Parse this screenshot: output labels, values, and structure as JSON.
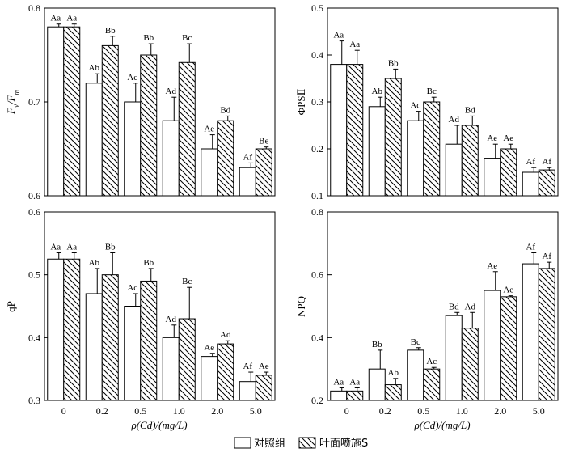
{
  "legend": {
    "series": [
      {
        "name": "对照组",
        "style": "plain"
      },
      {
        "name": "叶面喷施S",
        "style": "hatched"
      }
    ]
  },
  "colors": {
    "bar_fill": "#ffffff",
    "bar_edge": "#000000",
    "hatch": "#000000"
  },
  "chart_data": [
    {
      "type": "bar",
      "panel": "top-left",
      "ylabel_main": "F",
      "ylabel_sub1": "v",
      "ylabel_mid": "/F",
      "ylabel_sub2": "m",
      "ylabel": "Fv/Fm",
      "xlabel": "",
      "ylim": [
        0.6,
        0.8
      ],
      "yticks": [
        0.6,
        0.7,
        0.8
      ],
      "ytick_labels": [
        "0.6",
        "0.7",
        "0.8"
      ],
      "categories": [
        "0",
        "0.2",
        "0.5",
        "1.0",
        "2.0",
        "5.0"
      ],
      "show_xticklabels": false,
      "series": [
        {
          "values": [
            0.78,
            0.72,
            0.7,
            0.68,
            0.65,
            0.63
          ],
          "errors": [
            0.003,
            0.01,
            0.02,
            0.025,
            0.015,
            0.005
          ],
          "labels": [
            "Aa",
            "Ab",
            "Ac",
            "Ad",
            "Ae",
            "Af"
          ]
        },
        {
          "values": [
            0.78,
            0.76,
            0.75,
            0.742,
            0.68,
            0.65
          ],
          "errors": [
            0.003,
            0.01,
            0.012,
            0.02,
            0.005,
            0.002
          ],
          "labels": [
            "Aa",
            "Bb",
            "Bb",
            "Bc",
            "Bd",
            "Be"
          ]
        }
      ]
    },
    {
      "type": "bar",
      "panel": "top-right",
      "ylabel": "ΦPSⅡ",
      "xlabel": "",
      "ylim": [
        0.1,
        0.5
      ],
      "yticks": [
        0.1,
        0.2,
        0.3,
        0.4,
        0.5
      ],
      "ytick_labels": [
        "0.1",
        "0.2",
        "0.3",
        "0.4",
        "0.5"
      ],
      "categories": [
        "0",
        "0.2",
        "0.5",
        "1.0",
        "2.0",
        "5.0"
      ],
      "show_xticklabels": false,
      "series": [
        {
          "values": [
            0.38,
            0.29,
            0.26,
            0.21,
            0.18,
            0.15
          ],
          "errors": [
            0.05,
            0.02,
            0.02,
            0.04,
            0.03,
            0.01
          ],
          "labels": [
            "Aa",
            "Ab",
            "Ac",
            "Ad",
            "Ae",
            "Af"
          ]
        },
        {
          "values": [
            0.38,
            0.35,
            0.3,
            0.25,
            0.2,
            0.155
          ],
          "errors": [
            0.03,
            0.02,
            0.01,
            0.02,
            0.01,
            0.005
          ],
          "labels": [
            "Aa",
            "Bb",
            "Bc",
            "Bd",
            "Ae",
            "Af"
          ]
        }
      ]
    },
    {
      "type": "bar",
      "panel": "bottom-left",
      "ylabel": "qP",
      "xlabel": "ρ(Cd)/(mg/L)",
      "ylim": [
        0.3,
        0.6
      ],
      "yticks": [
        0.3,
        0.4,
        0.5,
        0.6
      ],
      "ytick_labels": [
        "0.3",
        "0.4",
        "0.5",
        "0.6"
      ],
      "categories": [
        "0",
        "0.2",
        "0.5",
        "1.0",
        "2.0",
        "5.0"
      ],
      "show_xticklabels": true,
      "series": [
        {
          "values": [
            0.525,
            0.47,
            0.45,
            0.4,
            0.37,
            0.33
          ],
          "errors": [
            0.01,
            0.04,
            0.02,
            0.02,
            0.005,
            0.015
          ],
          "labels": [
            "Aa",
            "Ab",
            "Ac",
            "Ad",
            "Ae",
            "Af"
          ]
        },
        {
          "values": [
            0.525,
            0.5,
            0.49,
            0.43,
            0.39,
            0.34
          ],
          "errors": [
            0.01,
            0.035,
            0.02,
            0.05,
            0.005,
            0.005
          ],
          "labels": [
            "Aa",
            "Bb",
            "Bb",
            "Bc",
            "Ad",
            "Ae"
          ]
        }
      ]
    },
    {
      "type": "bar",
      "panel": "bottom-right",
      "ylabel": "NPQ",
      "xlabel": "ρ(Cd)/(mg/L)",
      "ylim": [
        0.2,
        0.8
      ],
      "yticks": [
        0.2,
        0.4,
        0.6,
        0.8
      ],
      "ytick_labels": [
        "0.2",
        "0.4",
        "0.6",
        "0.8"
      ],
      "categories": [
        "0",
        "0.2",
        "0.5",
        "1.0",
        "2.0",
        "5.0"
      ],
      "show_xticklabels": true,
      "series": [
        {
          "values": [
            0.23,
            0.3,
            0.36,
            0.47,
            0.55,
            0.635
          ],
          "errors": [
            0.01,
            0.06,
            0.008,
            0.01,
            0.06,
            0.035
          ],
          "labels": [
            "Aa",
            "Bb",
            "Bc",
            "Bd",
            "Ae",
            "Af"
          ]
        },
        {
          "values": [
            0.23,
            0.25,
            0.3,
            0.43,
            0.53,
            0.62
          ],
          "errors": [
            0.01,
            0.02,
            0.005,
            0.05,
            0.003,
            0.02
          ],
          "labels": [
            "Aa",
            "Ab",
            "Ac",
            "Ad",
            "Ae",
            "Af"
          ]
        }
      ]
    }
  ]
}
